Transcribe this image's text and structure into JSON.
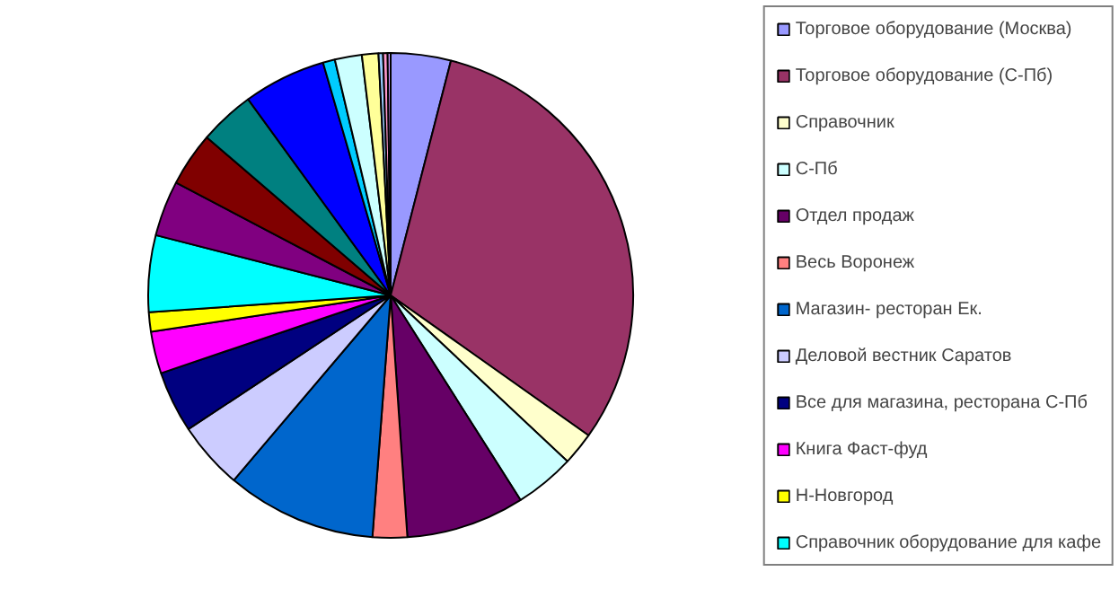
{
  "chart_data": {
    "type": "pie",
    "legend": "right",
    "categories": [
      "Торговое оборудование (Москва)",
      "Торговое оборудование (С-Пб)",
      "Справочник",
      "С-Пб",
      "Отдел продаж",
      "Весь Воронеж",
      "Магазин- ресторан Ек.",
      "Деловой вестник Саратов",
      "Все для магазина, ресторана С-Пб",
      "Книга Фаст-фуд",
      "Н-Новгород",
      "Справочник оборудование для кафе",
      null,
      null,
      null,
      null,
      null,
      null,
      null,
      null,
      null,
      null
    ],
    "values": [
      4.0,
      30.8,
      2.2,
      4.0,
      7.9,
      2.3,
      10.0,
      4.5,
      4.1,
      2.8,
      1.3,
      5.1,
      3.7,
      3.6,
      3.7,
      5.5,
      0.8,
      1.8,
      1.1,
      0.3,
      0.3,
      0.2
    ],
    "colors": [
      "#9999ff",
      "#993366",
      "#ffffcc",
      "#ccffff",
      "#660066",
      "#ff8080",
      "#0066cc",
      "#ccccff",
      "#000080",
      "#ff00ff",
      "#ffff00",
      "#00ffff",
      "#800080",
      "#800000",
      "#008080",
      "#0000ff",
      "#00ccff",
      "#ccffff",
      "#ffff99",
      "#99ccff",
      "#ff99cc",
      "#cc99ff"
    ]
  }
}
